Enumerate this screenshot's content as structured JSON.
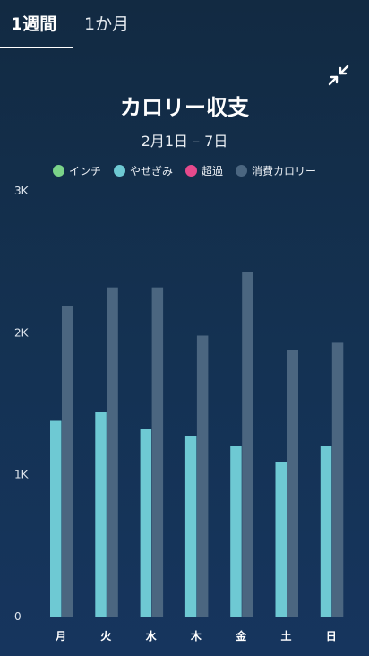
{
  "tabs": [
    {
      "label": "1週間",
      "active": true
    },
    {
      "label": "1か月",
      "active": false
    }
  ],
  "controls": {
    "collapse_icon": "collapse-arrows-icon"
  },
  "colors": {
    "inch": "#7bd389",
    "lose": "#6ec9d3",
    "over": "#e64a8c",
    "burned": "#4b6680"
  },
  "chart_data": {
    "type": "bar",
    "title": "カロリー収支",
    "subtitle": "2月1日 – 7日",
    "legend": [
      "インチ",
      "やせぎみ",
      "超過",
      "消費カロリー"
    ],
    "legend_placement": "top",
    "categories": [
      "月",
      "火",
      "水",
      "木",
      "金",
      "土",
      "日"
    ],
    "ylim": [
      0,
      3000
    ],
    "yticks": [
      "0",
      "1K",
      "2K",
      "3K"
    ],
    "series": [
      {
        "name": "やせぎみ",
        "values": [
          1380,
          1440,
          1320,
          1270,
          1200,
          1090,
          1200
        ]
      },
      {
        "name": "消費カロリー",
        "values": [
          2190,
          2320,
          2320,
          1980,
          2430,
          1880,
          1930
        ]
      }
    ]
  }
}
